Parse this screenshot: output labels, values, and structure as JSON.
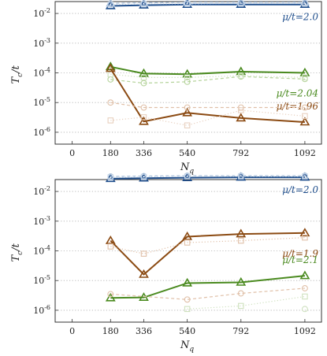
{
  "chart_data": [
    {
      "type": "line",
      "xlabel": "N_q",
      "ylabel": "T_c/t",
      "yscale": "log",
      "ylim_exp": [
        -6.4,
        -1.6
      ],
      "xlim": [
        -80,
        1170
      ],
      "x_ticks": [
        0,
        180,
        336,
        540,
        792,
        1092
      ],
      "y_tick_exponents": [
        -6,
        -5,
        -4,
        -3,
        -2
      ],
      "grid": "horizontal-dotted",
      "series": [
        {
          "name": "μ/t=2.0",
          "label_pos": "upper",
          "color": "#1f4e8c",
          "style": "solid",
          "marker": "triangle",
          "x": [
            180,
            336,
            540,
            792,
            1092
          ],
          "y": [
            0.018,
            0.019,
            0.02,
            0.02,
            0.02
          ]
        },
        {
          "name": "",
          "color": "#a9c0db",
          "style": "dashed",
          "marker": "triangle",
          "x": [
            180,
            336,
            540,
            792,
            1092
          ],
          "y": [
            0.022,
            0.023,
            0.024,
            0.024,
            0.024
          ]
        },
        {
          "name": "",
          "color": "#c6d5e7",
          "style": "dotted",
          "marker": "square",
          "x": [
            180,
            336,
            540,
            792,
            1092
          ],
          "y": [
            0.02,
            0.021,
            0.021,
            0.022,
            0.022
          ]
        },
        {
          "name": "μ/t=2.04",
          "label_pos": "mid",
          "color": "#4a8a1f",
          "style": "solid",
          "marker": "triangle",
          "x": [
            180,
            336,
            540,
            792,
            1092
          ],
          "y": [
            0.00016,
            9.5e-05,
            9e-05,
            0.00011,
            0.0001
          ]
        },
        {
          "name": "",
          "color": "#b5d39b",
          "style": "dashed",
          "marker": "circle",
          "x": [
            180,
            336,
            540,
            792,
            1092
          ],
          "y": [
            6e-05,
            4.5e-05,
            5e-05,
            7.5e-05,
            6.2e-05
          ]
        },
        {
          "name": "",
          "color": "#cfe1bf",
          "style": "dotted",
          "marker": "square",
          "x": [
            180,
            336,
            540,
            792,
            1092
          ],
          "y": [
            9e-05,
            7e-05,
            7e-05,
            8e-05,
            7e-05
          ]
        },
        {
          "name": "μ/t=1.96",
          "label_pos": "low",
          "color": "#8b4a12",
          "style": "solid",
          "marker": "triangle",
          "x": [
            180,
            336,
            540,
            792,
            1092
          ],
          "y": [
            0.00014,
            2.3e-06,
            4.5e-06,
            3e-06,
            2.2e-06
          ]
        },
        {
          "name": "",
          "color": "#e0c0a8",
          "style": "dashed",
          "marker": "circle",
          "x": [
            180,
            336,
            540,
            792,
            1092
          ],
          "y": [
            1e-05,
            6.8e-06,
            6.8e-06,
            6.8e-06,
            6.8e-06
          ]
        },
        {
          "name": "",
          "color": "#e8d0bf",
          "style": "dotted",
          "marker": "square",
          "x": [
            180,
            336,
            540,
            792,
            1092
          ],
          "y": [
            2.5e-06,
            3.2e-06,
            1.7e-06,
            5.5e-06,
            3.5e-06
          ]
        }
      ]
    },
    {
      "type": "line",
      "xlabel": "N_q",
      "ylabel": "T_c/t",
      "yscale": "log",
      "ylim_exp": [
        -6.4,
        -1.6
      ],
      "xlim": [
        -80,
        1170
      ],
      "x_ticks": [
        0,
        180,
        336,
        540,
        792,
        1092
      ],
      "y_tick_exponents": [
        -6,
        -5,
        -4,
        -3,
        -2
      ],
      "grid": "horizontal-dotted",
      "series": [
        {
          "name": "μ/t=2.0",
          "label_pos": "upper",
          "color": "#1f4e8c",
          "style": "solid",
          "marker": "triangle",
          "x": [
            180,
            336,
            540,
            792,
            1092
          ],
          "y": [
            0.027,
            0.028,
            0.029,
            0.03,
            0.03
          ]
        },
        {
          "name": "",
          "color": "#a9c0db",
          "style": "dashed",
          "marker": "circle",
          "x": [
            180,
            336,
            540,
            792,
            1092
          ],
          "y": [
            0.032,
            0.033,
            0.034,
            0.034,
            0.034
          ]
        },
        {
          "name": "",
          "color": "#c6d5e7",
          "style": "dotted",
          "marker": "square",
          "x": [
            180,
            336,
            540,
            792,
            1092
          ],
          "y": [
            0.03,
            0.031,
            0.032,
            0.032,
            0.032
          ]
        },
        {
          "name": "μ/t=1.9",
          "label_pos": "mid",
          "color": "#8b4a12",
          "style": "solid",
          "marker": "triangle",
          "x": [
            180,
            336,
            540,
            792,
            1092
          ],
          "y": [
            0.00022,
            1.6e-05,
            0.0003,
            0.00037,
            0.0004
          ]
        },
        {
          "name": "",
          "color": "#e0c0a8",
          "style": "dotted",
          "marker": "square",
          "x": [
            180,
            336,
            540,
            792,
            1092
          ],
          "y": [
            0.00014,
            8e-05,
            0.00019,
            0.00022,
            0.00028
          ]
        },
        {
          "name": "μ/t=2.1",
          "label_pos": "low",
          "color": "#4a8a1f",
          "style": "solid",
          "marker": "triangle",
          "x": [
            180,
            336,
            540,
            792,
            1092
          ],
          "y": [
            2.6e-06,
            2.7e-06,
            8.2e-06,
            8.7e-06,
            1.45e-05
          ]
        },
        {
          "name": "",
          "color": "#e0c0a8",
          "style": "dashed",
          "marker": "circle",
          "x": [
            180,
            336,
            540,
            792,
            1092
          ],
          "y": [
            3.5e-06,
            null,
            2.3e-06,
            3.7e-06,
            5.5e-06
          ]
        },
        {
          "name": "",
          "color": "#cfe1bf",
          "style": "dotted",
          "marker": "square",
          "x": [
            180,
            336,
            540,
            792,
            1092
          ],
          "y": [
            null,
            null,
            1.1e-06,
            1.4e-06,
            2.9e-06
          ]
        },
        {
          "name": "",
          "color": "#cfe1bf",
          "style": "dotted",
          "marker": "circle",
          "x": [
            180,
            336,
            540,
            792,
            1092
          ],
          "y": [
            null,
            null,
            null,
            null,
            1.1e-06
          ]
        }
      ]
    }
  ]
}
